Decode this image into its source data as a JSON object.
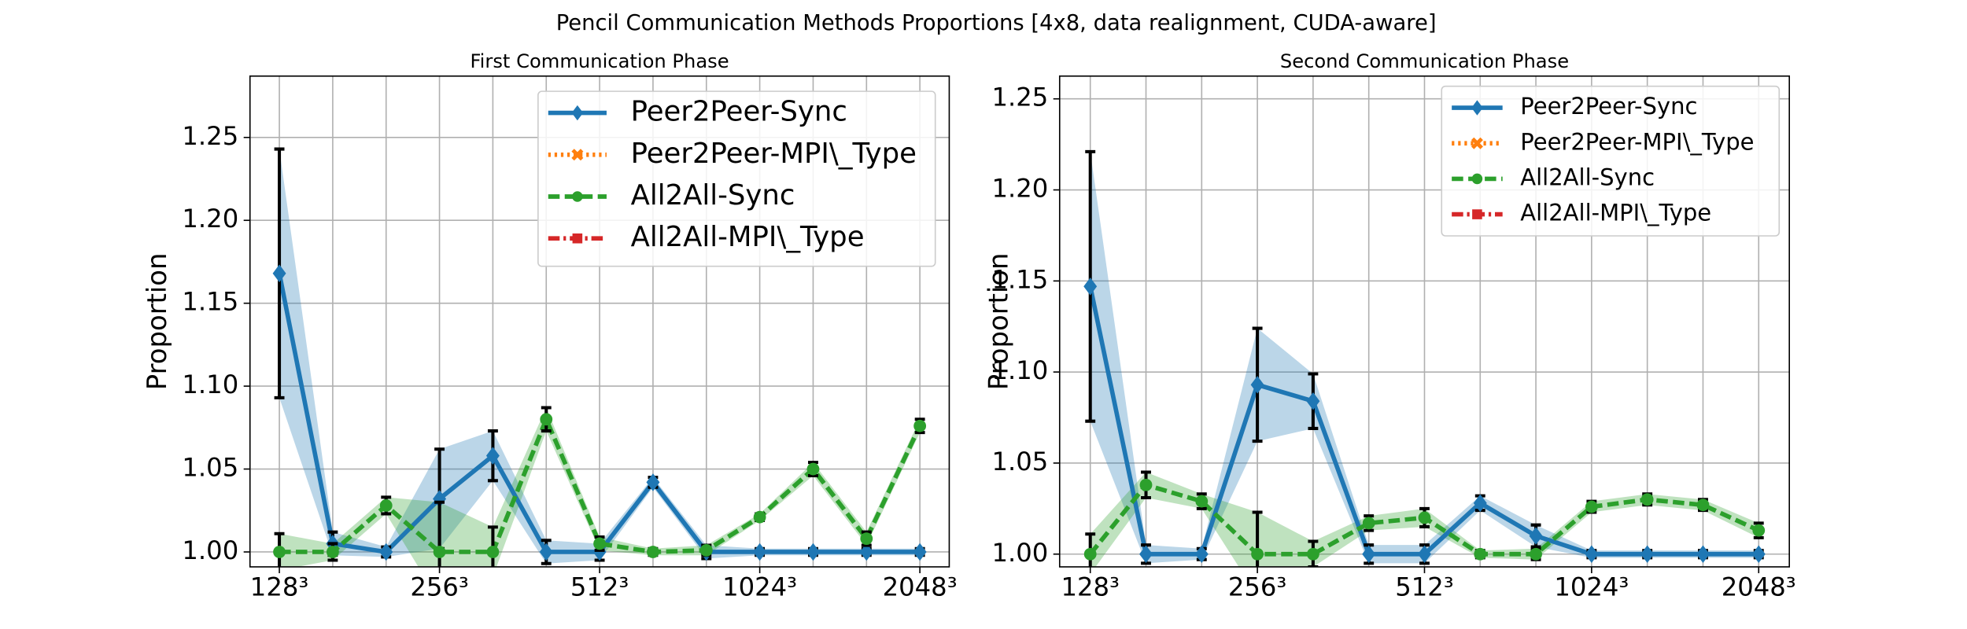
{
  "suptitle": "Pencil Communication Methods Proportions [4x8, data realignment, CUDA-aware]",
  "chart_data": [
    {
      "type": "line",
      "title": "First Communication Phase",
      "ylabel": "Proportion",
      "categories": [
        "128³",
        null,
        null,
        "256³",
        null,
        null,
        "512³",
        null,
        null,
        "1024³",
        null,
        null,
        "2048³"
      ],
      "xlim": [
        -0.55,
        12.55
      ],
      "ylim": [
        0.991,
        1.287
      ],
      "yticks": [
        {
          "value": 1.0,
          "label": "1.00"
        },
        {
          "value": 1.05,
          "label": "1.05"
        },
        {
          "value": 1.1,
          "label": "1.10"
        },
        {
          "value": 1.15,
          "label": "1.15"
        },
        {
          "value": 1.2,
          "label": "1.20"
        },
        {
          "value": 1.25,
          "label": "1.25"
        }
      ],
      "grid": true,
      "legend": "upper right",
      "series": [
        {
          "name": "Peer2Peer-Sync",
          "color": "#1f77b4",
          "linestyle": "solid",
          "marker": "diamond",
          "values": [
            1.168,
            1.005,
            1.0,
            1.032,
            1.058,
            1.0,
            1.0,
            1.042,
            1.0,
            1.0,
            1.0,
            1.0,
            1.0
          ],
          "errors": [
            0.075,
            0.007,
            0.003,
            0.03,
            0.015,
            0.007,
            0.005,
            0.003,
            0.004,
            0.002,
            0.002,
            0.002,
            0.002
          ]
        },
        {
          "name": "Peer2Peer-MPI\\_Type",
          "color": "#ff7f0e",
          "linestyle": "dotted",
          "marker": "x",
          "values": [
            null,
            null,
            null,
            null,
            null,
            null,
            null,
            null,
            null,
            null,
            null,
            null,
            null
          ]
        },
        {
          "name": "All2All-Sync",
          "color": "#2ca02c",
          "linestyle": "dashed",
          "marker": "circle",
          "values": [
            1.0,
            1.0,
            1.028,
            1.0,
            1.0,
            1.08,
            1.005,
            1.0,
            1.001,
            1.021,
            1.05,
            1.008,
            1.076
          ],
          "errors": [
            0.011,
            0.005,
            0.005,
            0.03,
            0.015,
            0.007,
            0.004,
            0.002,
            0.003,
            0.002,
            0.004,
            0.004,
            0.004
          ]
        },
        {
          "name": "All2All-MPI\\_Type",
          "color": "#d62728",
          "linestyle": "dashdot",
          "marker": "square",
          "values": [
            null,
            null,
            null,
            null,
            null,
            null,
            null,
            null,
            null,
            null,
            null,
            null,
            null
          ]
        }
      ]
    },
    {
      "type": "line",
      "title": "Second Communication Phase",
      "ylabel": "Proportion",
      "categories": [
        "128³",
        null,
        null,
        "256³",
        null,
        null,
        "512³",
        null,
        null,
        "1024³",
        null,
        null,
        "2048³"
      ],
      "xlim": [
        -0.55,
        12.55
      ],
      "ylim": [
        0.993,
        1.2625
      ],
      "yticks": [
        {
          "value": 1.0,
          "label": "1.00"
        },
        {
          "value": 1.05,
          "label": "1.05"
        },
        {
          "value": 1.1,
          "label": "1.10"
        },
        {
          "value": 1.15,
          "label": "1.15"
        },
        {
          "value": 1.2,
          "label": "1.20"
        },
        {
          "value": 1.25,
          "label": "1.25"
        }
      ],
      "grid": true,
      "legend": "upper right",
      "series": [
        {
          "name": "Peer2Peer-Sync",
          "color": "#1f77b4",
          "linestyle": "solid",
          "marker": "diamond",
          "values": [
            1.147,
            1.0,
            1.0,
            1.093,
            1.084,
            1.0,
            1.0,
            1.028,
            1.01,
            1.0,
            1.0,
            1.0,
            1.0
          ],
          "errors": [
            0.074,
            0.005,
            0.003,
            0.031,
            0.015,
            0.005,
            0.005,
            0.004,
            0.006,
            0.002,
            0.002,
            0.002,
            0.002
          ]
        },
        {
          "name": "Peer2Peer-MPI\\_Type",
          "color": "#ff7f0e",
          "linestyle": "dotted",
          "marker": "x",
          "values": [
            null,
            null,
            null,
            null,
            null,
            null,
            null,
            null,
            null,
            null,
            null,
            null,
            null
          ]
        },
        {
          "name": "All2All-Sync",
          "color": "#2ca02c",
          "linestyle": "dashed",
          "marker": "circle",
          "values": [
            1.0,
            1.038,
            1.029,
            1.0,
            1.0,
            1.017,
            1.02,
            1.0,
            1.0,
            1.026,
            1.03,
            1.027,
            1.013
          ],
          "errors": [
            0.011,
            0.007,
            0.004,
            0.023,
            0.007,
            0.004,
            0.005,
            0.002,
            0.003,
            0.003,
            0.003,
            0.003,
            0.004
          ]
        },
        {
          "name": "All2All-MPI\\_Type",
          "color": "#d62728",
          "linestyle": "dashdot",
          "marker": "square",
          "values": [
            null,
            null,
            null,
            null,
            null,
            null,
            null,
            null,
            null,
            null,
            null,
            null,
            null
          ]
        }
      ]
    }
  ]
}
